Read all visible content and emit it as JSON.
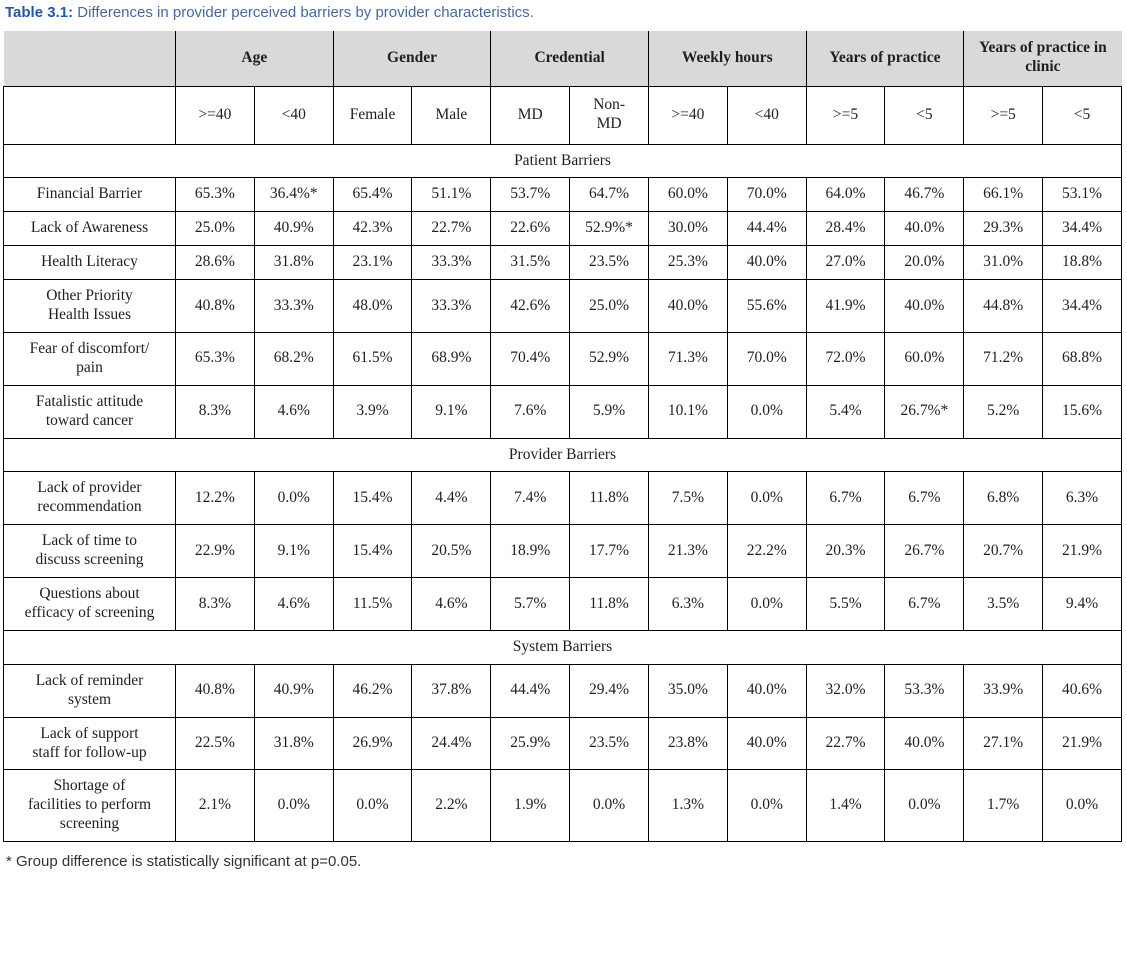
{
  "title": {
    "label": "Table 3.1:",
    "text": " Differences in provider perceived barriers by provider characteristics."
  },
  "footnote": "* Group difference is statistically significant at p=0.05.",
  "colors": {
    "header_bg": "#d8dad7",
    "title_label": "#2457a8",
    "title_text": "#46699f",
    "border": "#000000",
    "text": "#1f1f1f"
  },
  "table": {
    "column_groups": [
      {
        "label": "Age",
        "span": 2
      },
      {
        "label": "Gender",
        "span": 2
      },
      {
        "label": "Credential",
        "span": 2
      },
      {
        "label": "Weekly hours",
        "span": 2
      },
      {
        "label": "Years of practice",
        "span": 2
      },
      {
        "label": "Years of practice in clinic",
        "span": 2
      }
    ],
    "sub_headers": [
      ">=40",
      "<40",
      "Female",
      "Male",
      "MD",
      "Non-\nMD",
      ">=40",
      "<40",
      ">=5",
      "<5",
      ">=5",
      "<5"
    ],
    "sections": [
      {
        "label": "Patient Barriers",
        "rows": [
          {
            "label": "Financial Barrier",
            "values": [
              "65.3%",
              "36.4%*",
              "65.4%",
              "51.1%",
              "53.7%",
              "64.7%",
              "60.0%",
              "70.0%",
              "64.0%",
              "46.7%",
              "66.1%",
              "53.1%"
            ]
          },
          {
            "label": "Lack of Awareness",
            "values": [
              "25.0%",
              "40.9%",
              "42.3%",
              "22.7%",
              "22.6%",
              "52.9%*",
              "30.0%",
              "44.4%",
              "28.4%",
              "40.0%",
              "29.3%",
              "34.4%"
            ]
          },
          {
            "label": "Health Literacy",
            "values": [
              "28.6%",
              "31.8%",
              "23.1%",
              "33.3%",
              "31.5%",
              "23.5%",
              "25.3%",
              "40.0%",
              "27.0%",
              "20.0%",
              "31.0%",
              "18.8%"
            ]
          },
          {
            "label": "Other Priority\nHealth Issues",
            "values": [
              "40.8%",
              "33.3%",
              "48.0%",
              "33.3%",
              "42.6%",
              "25.0%",
              "40.0%",
              "55.6%",
              "41.9%",
              "40.0%",
              "44.8%",
              "34.4%"
            ]
          },
          {
            "label": "Fear of discomfort/\npain",
            "values": [
              "65.3%",
              "68.2%",
              "61.5%",
              "68.9%",
              "70.4%",
              "52.9%",
              "71.3%",
              "70.0%",
              "72.0%",
              "60.0%",
              "71.2%",
              "68.8%"
            ]
          },
          {
            "label": "Fatalistic attitude\ntoward cancer",
            "values": [
              "8.3%",
              "4.6%",
              "3.9%",
              "9.1%",
              "7.6%",
              "5.9%",
              "10.1%",
              "0.0%",
              "5.4%",
              "26.7%*",
              "5.2%",
              "15.6%"
            ]
          }
        ]
      },
      {
        "label": "Provider Barriers",
        "rows": [
          {
            "label": "Lack of provider\nrecommendation",
            "values": [
              "12.2%",
              "0.0%",
              "15.4%",
              "4.4%",
              "7.4%",
              "11.8%",
              "7.5%",
              "0.0%",
              "6.7%",
              "6.7%",
              "6.8%",
              "6.3%"
            ]
          },
          {
            "label": "Lack of time to\ndiscuss screening",
            "values": [
              "22.9%",
              "9.1%",
              "15.4%",
              "20.5%",
              "18.9%",
              "17.7%",
              "21.3%",
              "22.2%",
              "20.3%",
              "26.7%",
              "20.7%",
              "21.9%"
            ]
          },
          {
            "label": "Questions about\nefficacy of screening",
            "values": [
              "8.3%",
              "4.6%",
              "11.5%",
              "4.6%",
              "5.7%",
              "11.8%",
              "6.3%",
              "0.0%",
              "5.5%",
              "6.7%",
              "3.5%",
              "9.4%"
            ]
          }
        ]
      },
      {
        "label": "System Barriers",
        "rows": [
          {
            "label": "Lack of reminder\nsystem",
            "values": [
              "40.8%",
              "40.9%",
              "46.2%",
              "37.8%",
              "44.4%",
              "29.4%",
              "35.0%",
              "40.0%",
              "32.0%",
              "53.3%",
              "33.9%",
              "40.6%"
            ]
          },
          {
            "label": "Lack of support\nstaff for follow-up",
            "values": [
              "22.5%",
              "31.8%",
              "26.9%",
              "24.4%",
              "25.9%",
              "23.5%",
              "23.8%",
              "40.0%",
              "22.7%",
              "40.0%",
              "27.1%",
              "21.9%"
            ]
          },
          {
            "label": "Shortage of\nfacilities to perform\nscreening",
            "values": [
              "2.1%",
              "0.0%",
              "0.0%",
              "2.2%",
              "1.9%",
              "0.0%",
              "1.3%",
              "0.0%",
              "1.4%",
              "0.0%",
              "1.7%",
              "0.0%"
            ]
          }
        ]
      }
    ]
  }
}
